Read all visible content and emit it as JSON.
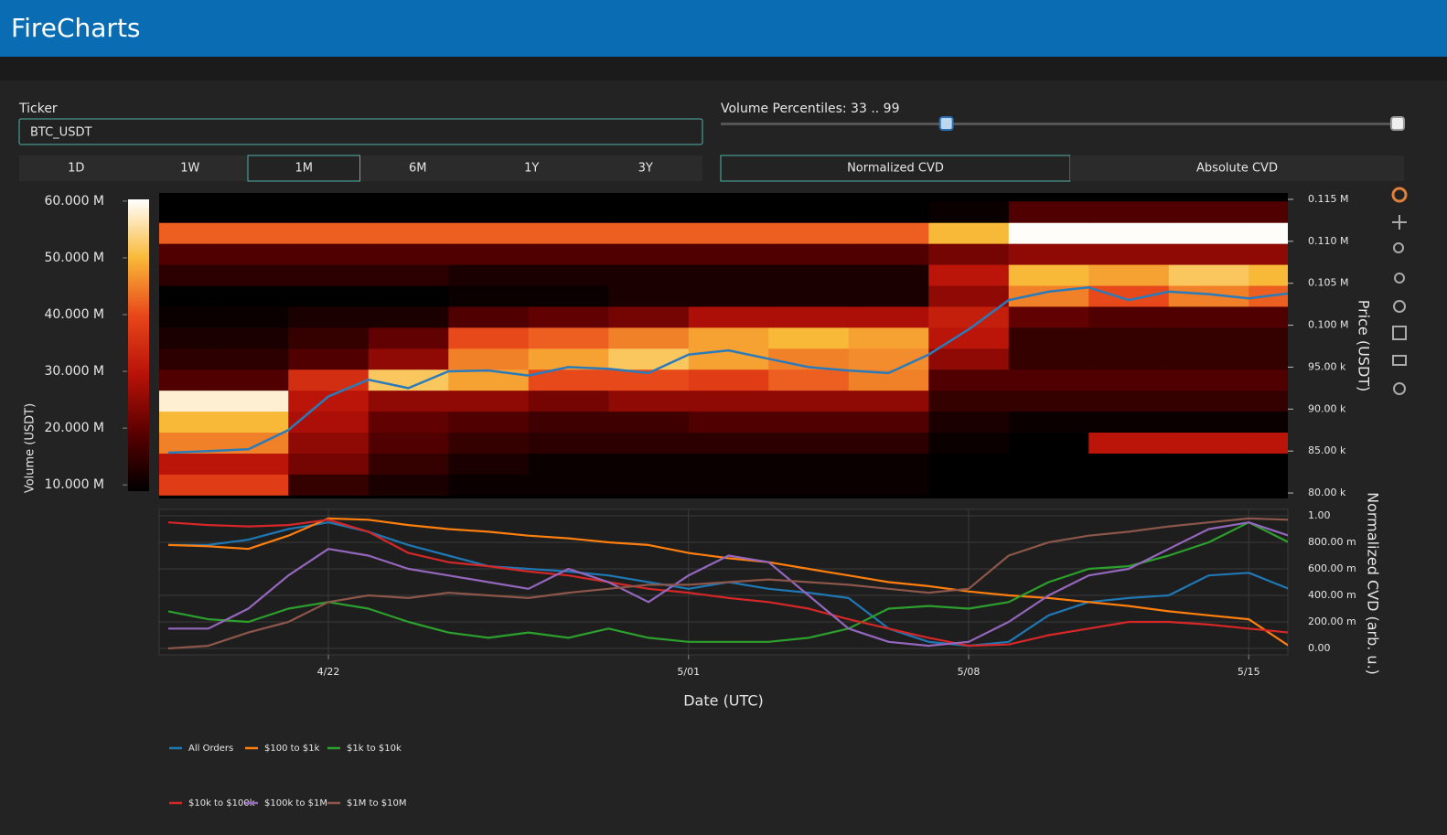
{
  "header": {
    "title": "FireCharts"
  },
  "controls": {
    "ticker": {
      "label": "Ticker",
      "value": "BTC_USDT"
    },
    "timeframes": {
      "options": [
        "1D",
        "1W",
        "1M",
        "6M",
        "1Y",
        "3Y"
      ],
      "selected": 2
    },
    "volume_percentiles": {
      "label": "Volume Percentiles: 33 .. 99",
      "values": [
        33,
        99
      ],
      "range": [
        0,
        99
      ]
    },
    "cvd_mode": {
      "options": [
        "Normalized CVD",
        "Absolute CVD"
      ],
      "selected": 0
    }
  },
  "chart_data": [
    {
      "type": "heatmap",
      "ylabel": "Price (USDT)",
      "xlim": [
        "4/18",
        "5/16"
      ],
      "ylim": [
        79350,
        115760
      ],
      "yticks": [
        {
          "value": 115000,
          "label": "0.115 M"
        },
        {
          "value": 110000,
          "label": "0.110 M"
        },
        {
          "value": 105000,
          "label": "0.105 M"
        },
        {
          "value": 100000,
          "label": "0.100 M"
        },
        {
          "value": 95000,
          "label": "95.00 k"
        },
        {
          "value": 90000,
          "label": "90.00 k"
        },
        {
          "value": 85000,
          "label": "85.00 k"
        },
        {
          "value": 80000,
          "label": "80.00 k"
        }
      ],
      "colorscale": [
        "#000000",
        "#5a0000",
        "#b81208",
        "#e8461a",
        "#f9b938",
        "#ffffff"
      ],
      "colorbar": {
        "label": "Volume (USDT)",
        "lim": [
          8900000,
          60300000
        ],
        "ticks": [
          {
            "value": 60000000,
            "label": "60.000 M"
          },
          {
            "value": 50000000,
            "label": "50.000 M"
          },
          {
            "value": 40000000,
            "label": "40.000 M"
          },
          {
            "value": 30000000,
            "label": "30.000 M"
          },
          {
            "value": 20000000,
            "label": "20.000 M"
          },
          {
            "value": 10000000,
            "label": "10.000 M"
          }
        ]
      },
      "heatmap": {
        "x": [
          "4/18",
          "4/20",
          "4/22",
          "4/24",
          "4/26",
          "4/28",
          "4/30",
          "5/02",
          "5/04",
          "5/06",
          "5/08",
          "5/10",
          "5/12",
          "5/14",
          "5/16"
        ],
        "y": [
          81000,
          83500,
          86000,
          88500,
          91000,
          93500,
          96000,
          98500,
          101000,
          103500,
          106000,
          108500,
          111000,
          113500
        ],
        "z": [
          [
            38000000.0,
            38000000.0,
            15000000.0,
            12000000.0,
            10000000.0,
            10000000.0,
            10000000.0,
            10000000.0,
            10000000.0,
            10000000.0,
            8000000.0,
            6000000.0,
            6000000.0,
            6000000.0,
            6000000.0
          ],
          [
            30000000.0,
            30000000.0,
            22000000.0,
            15000000.0,
            12000000.0,
            10000000.0,
            10000000.0,
            10000000.0,
            10000000.0,
            10000000.0,
            8000000.0,
            6000000.0,
            6000000.0,
            6000000.0,
            6000000.0
          ],
          [
            45000000.0,
            45000000.0,
            25000000.0,
            18000000.0,
            15000000.0,
            14000000.0,
            14000000.0,
            14000000.0,
            14000000.0,
            14000000.0,
            10000000.0,
            8000000.0,
            30000000.0,
            30000000.0,
            30000000.0
          ],
          [
            50000000.0,
            50000000.0,
            28000000.0,
            20000000.0,
            18000000.0,
            16000000.0,
            16000000.0,
            18000000.0,
            18000000.0,
            18000000.0,
            12000000.0,
            10000000.0,
            10000000.0,
            10000000.0,
            10000000.0
          ],
          [
            58000000.0,
            58000000.0,
            30000000.0,
            25000000.0,
            25000000.0,
            22000000.0,
            25000000.0,
            25000000.0,
            25000000.0,
            25000000.0,
            15000000.0,
            15000000.0,
            15000000.0,
            15000000.0,
            15000000.0
          ],
          [
            18000000.0,
            18000000.0,
            35000000.0,
            52000000.0,
            48000000.0,
            40000000.0,
            40000000.0,
            38000000.0,
            42000000.0,
            45000000.0,
            18000000.0,
            18000000.0,
            18000000.0,
            18000000.0,
            18000000.0
          ],
          [
            14000000.0,
            14000000.0,
            18000000.0,
            25000000.0,
            45000000.0,
            48000000.0,
            52000000.0,
            48000000.0,
            45000000.0,
            46000000.0,
            25000000.0,
            15000000.0,
            15000000.0,
            15000000.0,
            15000000.0
          ],
          [
            12000000.0,
            12000000.0,
            15000000.0,
            20000000.0,
            40000000.0,
            42000000.0,
            45000000.0,
            48000000.0,
            50000000.0,
            48000000.0,
            30000000.0,
            15000000.0,
            15000000.0,
            15000000.0,
            15000000.0
          ],
          [
            10000000.0,
            10000000.0,
            12000000.0,
            12000000.0,
            18000000.0,
            20000000.0,
            22000000.0,
            28000000.0,
            28000000.0,
            28000000.0,
            32000000.0,
            20000000.0,
            18000000.0,
            18000000.0,
            18000000.0
          ],
          [
            8000000.0,
            8000000.0,
            8000000.0,
            8000000.0,
            10000000.0,
            10000000.0,
            12000000.0,
            12000000.0,
            12000000.0,
            12000000.0,
            25000000.0,
            45000000.0,
            40000000.0,
            45000000.0,
            42000000.0
          ],
          [
            14000000.0,
            14000000.0,
            14000000.0,
            14000000.0,
            12000000.0,
            12000000.0,
            12000000.0,
            12000000.0,
            12000000.0,
            12000000.0,
            30000000.0,
            50000000.0,
            48000000.0,
            52000000.0,
            50000000.0
          ],
          [
            18000000.0,
            18000000.0,
            18000000.0,
            18000000.0,
            18000000.0,
            18000000.0,
            18000000.0,
            18000000.0,
            18000000.0,
            18000000.0,
            22000000.0,
            25000000.0,
            25000000.0,
            25000000.0,
            25000000.0
          ],
          [
            42000000.0,
            42000000.0,
            42000000.0,
            42000000.0,
            42000000.0,
            42000000.0,
            42000000.0,
            42000000.0,
            42000000.0,
            42000000.0,
            50000000.0,
            60000000.0,
            60000000.0,
            60000000.0,
            60000000.0
          ],
          [
            5000000.0,
            5000000.0,
            5000000.0,
            5000000.0,
            5000000.0,
            5000000.0,
            5000000.0,
            5000000.0,
            5000000.0,
            5000000.0,
            10000000.0,
            18000000.0,
            18000000.0,
            18000000.0,
            18000000.0
          ]
        ]
      },
      "x": [
        "4/18",
        "4/19",
        "4/20",
        "4/21",
        "4/22",
        "4/23",
        "4/24",
        "4/25",
        "4/26",
        "4/27",
        "4/28",
        "4/29",
        "4/30",
        "5/01",
        "5/02",
        "5/03",
        "5/04",
        "5/05",
        "5/06",
        "5/07",
        "5/08",
        "5/09",
        "5/10",
        "5/11",
        "5/12",
        "5/13",
        "5/14",
        "5/15",
        "5/16"
      ],
      "series": [
        {
          "color": "#2b7bba",
          "values": [
            84800,
            85000,
            85200,
            87500,
            91500,
            93500,
            92500,
            94500,
            94600,
            94000,
            95000,
            94800,
            94300,
            96500,
            97000,
            96000,
            95000,
            94600,
            94300,
            96500,
            99500,
            103000,
            104000,
            104500,
            103000,
            104000,
            103700,
            103200,
            103800
          ]
        }
      ]
    },
    {
      "type": "line",
      "ylabel": "Normalized CVD (arb. u.)",
      "xlabel": "Date (UTC)",
      "xlim": [
        "4/18",
        "5/16"
      ],
      "xticks": [
        "4/22",
        "5/01",
        "5/08",
        "5/15"
      ],
      "ylim": [
        -0.048,
        1.048
      ],
      "yticks": [
        {
          "value": 1,
          "label": "1.00"
        },
        {
          "value": 0.8,
          "label": "800.00 m"
        },
        {
          "value": 0.6,
          "label": "600.00 m"
        },
        {
          "value": 0.4,
          "label": "400.00 m"
        },
        {
          "value": 0.2,
          "label": "200.00 m"
        },
        {
          "value": 0,
          "label": "0.00"
        }
      ],
      "grid": true,
      "legend": "bottom-left",
      "x": [
        "4/18",
        "4/19",
        "4/20",
        "4/21",
        "4/22",
        "4/23",
        "4/24",
        "4/25",
        "4/26",
        "4/27",
        "4/28",
        "4/29",
        "4/30",
        "5/01",
        "5/02",
        "5/03",
        "5/04",
        "5/05",
        "5/06",
        "5/07",
        "5/08",
        "5/09",
        "5/10",
        "5/11",
        "5/12",
        "5/13",
        "5/14",
        "5/15",
        "5/16"
      ],
      "series": [
        {
          "name": "All Orders",
          "color": "#1f77b4",
          "values": [
            0.78,
            0.78,
            0.82,
            0.9,
            0.95,
            0.88,
            0.78,
            0.7,
            0.62,
            0.6,
            0.58,
            0.55,
            0.5,
            0.45,
            0.5,
            0.45,
            0.42,
            0.38,
            0.15,
            0.05,
            0.02,
            0.05,
            0.25,
            0.35,
            0.38,
            0.4,
            0.55,
            0.57,
            0.45
          ]
        },
        {
          "name": "$100 to $1k",
          "color": "#ff7f0e",
          "values": [
            0.78,
            0.77,
            0.75,
            0.85,
            0.98,
            0.97,
            0.93,
            0.9,
            0.88,
            0.85,
            0.83,
            0.8,
            0.78,
            0.72,
            0.68,
            0.65,
            0.6,
            0.55,
            0.5,
            0.47,
            0.43,
            0.4,
            0.38,
            0.35,
            0.32,
            0.28,
            0.25,
            0.22,
            0.02
          ]
        },
        {
          "name": "$1k to $10k",
          "color": "#2ca02c",
          "values": [
            0.28,
            0.22,
            0.2,
            0.3,
            0.35,
            0.3,
            0.2,
            0.12,
            0.08,
            0.12,
            0.08,
            0.15,
            0.08,
            0.05,
            0.05,
            0.05,
            0.08,
            0.15,
            0.3,
            0.32,
            0.3,
            0.35,
            0.5,
            0.6,
            0.62,
            0.7,
            0.8,
            0.95,
            0.8
          ]
        },
        {
          "name": "$10k to $100k",
          "color": "#d62728",
          "values": [
            0.95,
            0.93,
            0.92,
            0.93,
            0.97,
            0.88,
            0.72,
            0.65,
            0.62,
            0.58,
            0.55,
            0.5,
            0.45,
            0.42,
            0.38,
            0.35,
            0.3,
            0.22,
            0.15,
            0.08,
            0.02,
            0.03,
            0.1,
            0.15,
            0.2,
            0.2,
            0.18,
            0.15,
            0.12
          ]
        },
        {
          "name": "$100k to $1M",
          "color": "#9467bd",
          "values": [
            0.15,
            0.15,
            0.3,
            0.55,
            0.75,
            0.7,
            0.6,
            0.55,
            0.5,
            0.45,
            0.6,
            0.5,
            0.35,
            0.55,
            0.7,
            0.65,
            0.4,
            0.15,
            0.05,
            0.02,
            0.05,
            0.2,
            0.4,
            0.55,
            0.6,
            0.75,
            0.9,
            0.95,
            0.85
          ]
        },
        {
          "name": "$1M to $10M",
          "color": "#8c564b",
          "values": [
            0.0,
            0.02,
            0.12,
            0.2,
            0.35,
            0.4,
            0.38,
            0.42,
            0.4,
            0.38,
            0.42,
            0.45,
            0.48,
            0.48,
            0.5,
            0.52,
            0.5,
            0.48,
            0.45,
            0.42,
            0.45,
            0.7,
            0.8,
            0.85,
            0.88,
            0.92,
            0.95,
            0.98,
            0.97
          ]
        }
      ]
    }
  ]
}
